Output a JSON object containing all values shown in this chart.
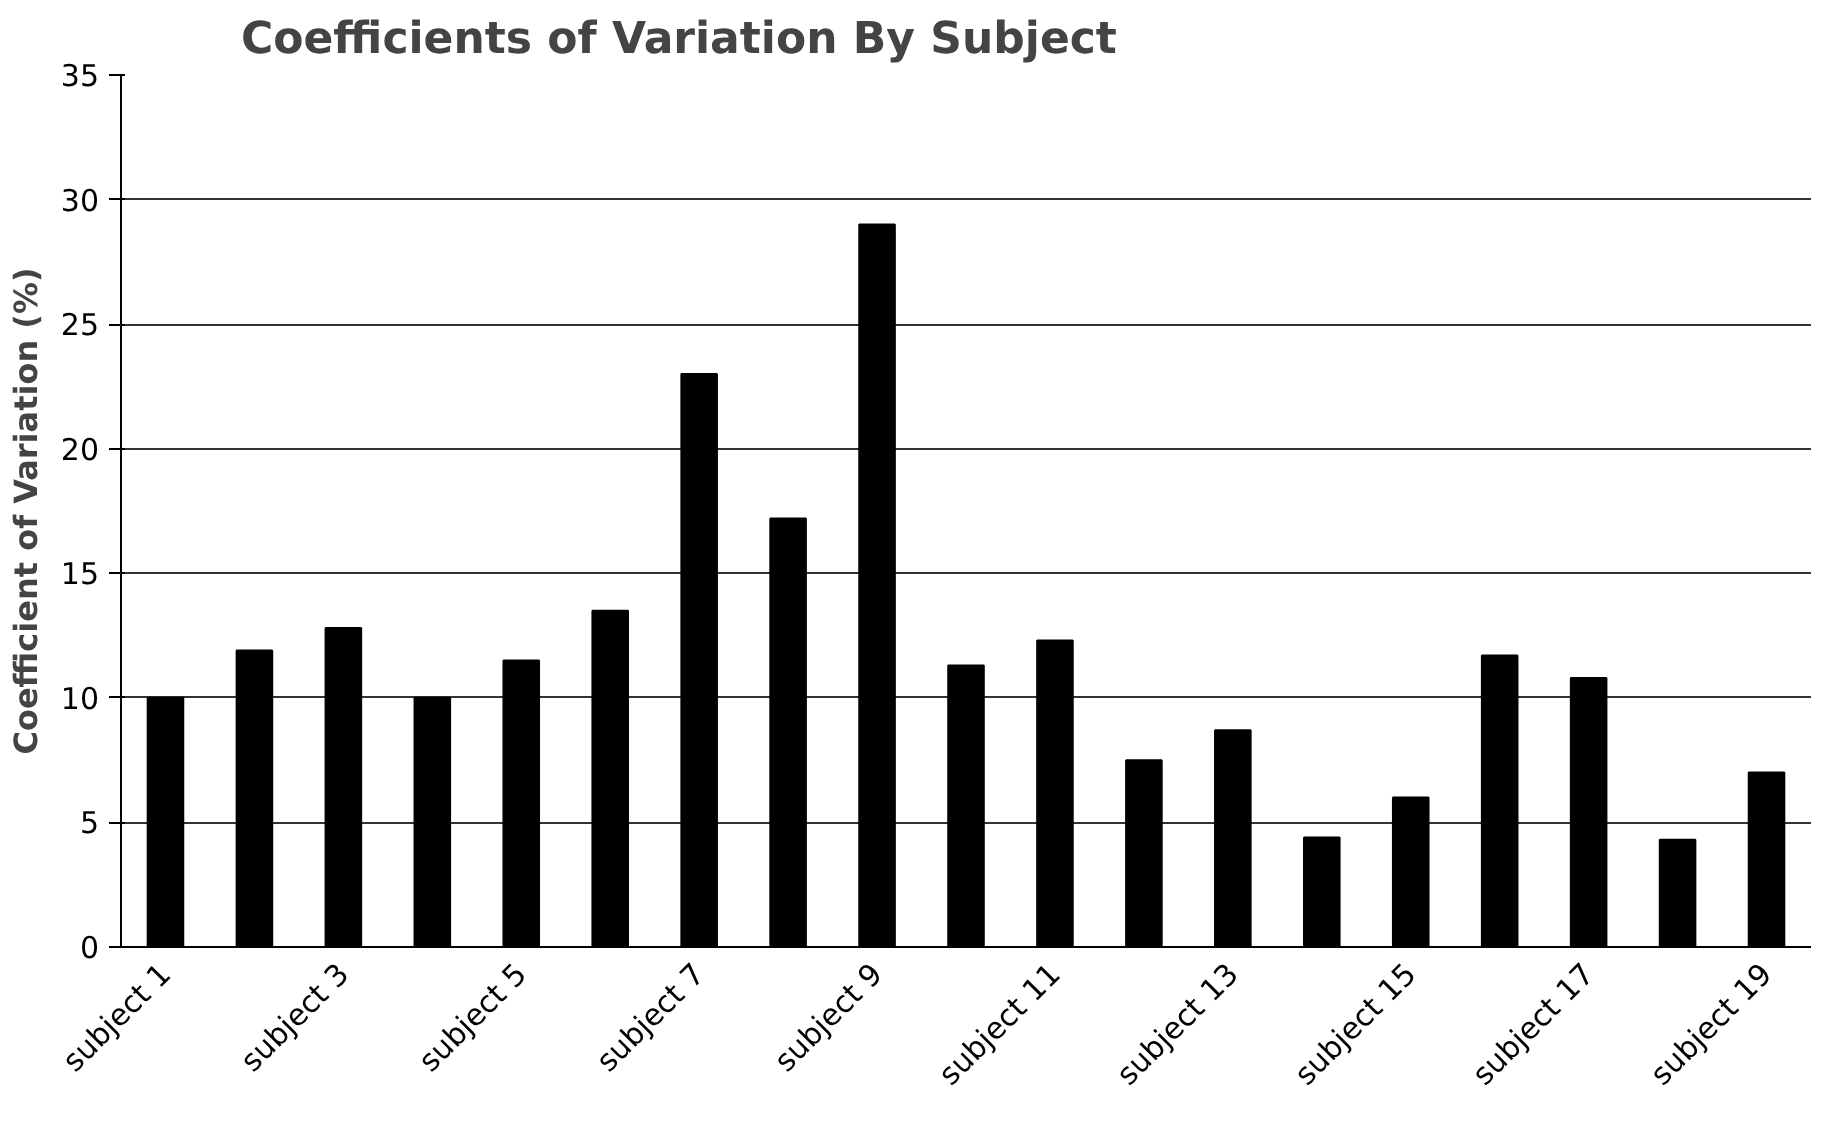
{
  "chart_data": {
    "type": "bar",
    "title": "Coefficients of Variation By Subject",
    "ylabel": "Coefficient of Variation (%)",
    "categories": [
      "subject 1",
      null,
      "subject 3",
      null,
      "subject 5",
      null,
      "subject 7",
      null,
      "subject 9",
      null,
      "subject 11",
      null,
      "subject 13",
      null,
      "subject 15",
      null,
      "subject 17",
      null,
      "subject 19"
    ],
    "values": [
      10.0,
      11.9,
      12.8,
      10.0,
      11.5,
      13.5,
      23.0,
      17.2,
      29.0,
      11.3,
      12.3,
      7.5,
      8.7,
      4.4,
      6.0,
      11.7,
      10.8,
      4.3,
      7.0
    ],
    "color": "#000000",
    "ylim": [
      0,
      35
    ],
    "yticks": [
      0,
      5,
      10,
      15,
      20,
      25,
      30,
      35
    ],
    "grid": "y"
  }
}
